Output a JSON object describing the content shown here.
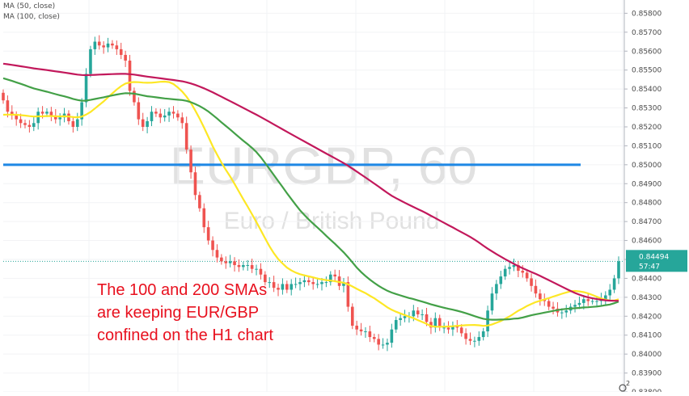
{
  "legend": {
    "ma1": "MA (50, close)",
    "ma2": "MA (100, close)"
  },
  "watermark": {
    "symbol": "EURGBP, 60",
    "name": "Euro / British Pound"
  },
  "annotation": {
    "lines": [
      "The 100 and 200 SMAs",
      "are keeping EUR/GBP",
      "confined on the H1 chart"
    ]
  },
  "badge": {
    "text": "2"
  },
  "chart_data": {
    "type": "candlestick",
    "y_ticks": [
      "0.85800",
      "0.85700",
      "0.85600",
      "0.85500",
      "0.85400",
      "0.85300",
      "0.85200",
      "0.85100",
      "0.85000",
      "0.84900",
      "0.84800",
      "0.84700",
      "0.84600",
      "0.84500",
      "0.84400",
      "0.84300",
      "0.84200",
      "0.84100",
      "0.84000",
      "0.83900",
      "0.83800"
    ],
    "ylim": [
      0.838,
      0.8587
    ],
    "price_label": "0.84494",
    "countdown_label": "57:47",
    "horizontal_level": 0.85,
    "colors": {
      "up": "#26a69a",
      "down": "#ef5350",
      "sma_red": "#c2185b",
      "sma_green": "#43a047",
      "sma_yellow": "#fde725",
      "level": "#1e88e5",
      "price_line": "#26a69a"
    },
    "close": [
      0.8534,
      0.8528,
      0.8526,
      0.8524,
      0.8522,
      0.8521,
      0.852,
      0.8522,
      0.8528,
      0.8527,
      0.8528,
      0.8526,
      0.8524,
      0.8525,
      0.8527,
      0.8523,
      0.852,
      0.8524,
      0.8533,
      0.8548,
      0.8561,
      0.8565,
      0.8563,
      0.8562,
      0.8564,
      0.8563,
      0.8561,
      0.8558,
      0.8555,
      0.8539,
      0.8533,
      0.8524,
      0.852,
      0.8523,
      0.8528,
      0.8527,
      0.8525,
      0.8526,
      0.8528,
      0.8527,
      0.8525,
      0.8522,
      0.8508,
      0.8496,
      0.8484,
      0.8477,
      0.8467,
      0.846,
      0.8455,
      0.8451,
      0.8449,
      0.8448,
      0.8449,
      0.8447,
      0.8446,
      0.8447,
      0.8447,
      0.8445,
      0.8445,
      0.8442,
      0.8438,
      0.8438,
      0.8435,
      0.8434,
      0.8437,
      0.8434,
      0.8437,
      0.8437,
      0.8438,
      0.8439,
      0.8438,
      0.8437,
      0.8437,
      0.8438,
      0.8438,
      0.8442,
      0.8441,
      0.8436,
      0.8438,
      0.8425,
      0.8415,
      0.8413,
      0.8412,
      0.8412,
      0.8409,
      0.8408,
      0.8405,
      0.8405,
      0.8406,
      0.8413,
      0.8418,
      0.8419,
      0.842,
      0.842,
      0.8423,
      0.8421,
      0.8421,
      0.8417,
      0.8414,
      0.8419,
      0.8414,
      0.8414,
      0.8413,
      0.8415,
      0.8414,
      0.8411,
      0.8408,
      0.8407,
      0.8407,
      0.8409,
      0.8412,
      0.8423,
      0.8432,
      0.8437,
      0.8441,
      0.8445,
      0.8446,
      0.8447,
      0.8444,
      0.8443,
      0.844,
      0.8436,
      0.8432,
      0.8429,
      0.8428,
      0.8425,
      0.8424,
      0.8422,
      0.8422,
      0.8423,
      0.8425,
      0.8426,
      0.8427,
      0.8429,
      0.8428,
      0.8428,
      0.8428,
      0.8429,
      0.8431,
      0.8434,
      0.844,
      0.8449
    ]
  }
}
